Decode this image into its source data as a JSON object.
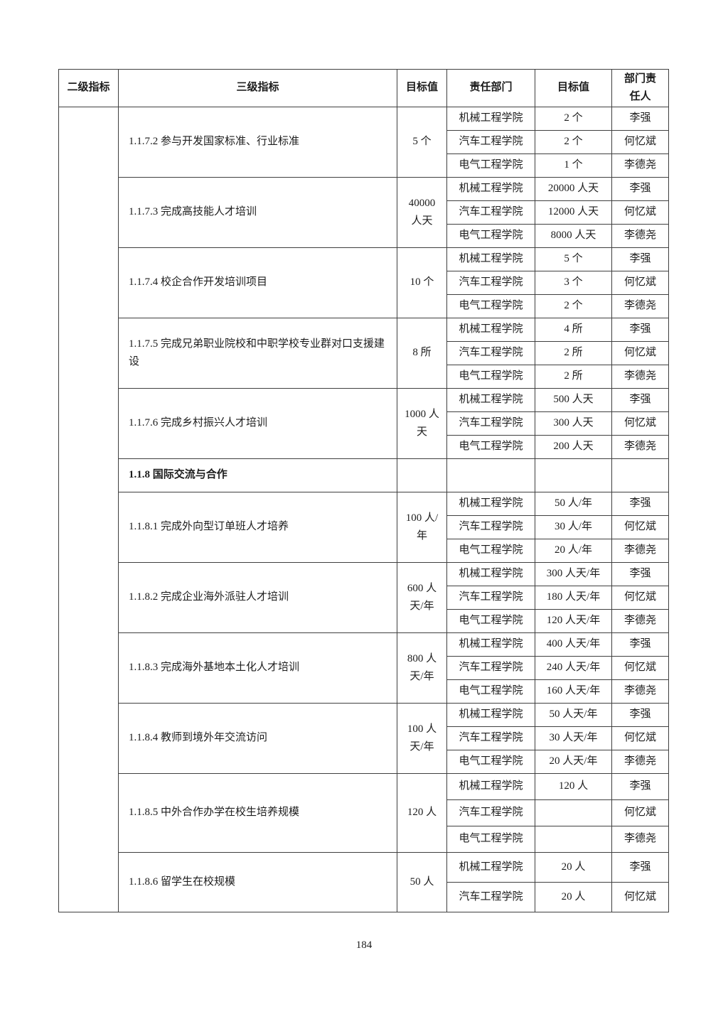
{
  "page": {
    "number": "184"
  },
  "table": {
    "headers": [
      "二级指标",
      "三级指标",
      "目标值",
      "责任部门",
      "目标值",
      "部门责任人"
    ],
    "groups": [
      {
        "indicator": "1.1.7.2 参与开发国家标准、行业标准",
        "target": "5 个",
        "rows": [
          {
            "dept": "机械工程学院",
            "value": "2 个",
            "person": "李强"
          },
          {
            "dept": "汽车工程学院",
            "value": "2 个",
            "person": "何忆斌"
          },
          {
            "dept": "电气工程学院",
            "value": "1 个",
            "person": "李德尧"
          }
        ]
      },
      {
        "indicator": "1.1.7.3 完成高技能人才培训",
        "target": "40000 人天",
        "rows": [
          {
            "dept": "机械工程学院",
            "value": "20000 人天",
            "person": "李强"
          },
          {
            "dept": "汽车工程学院",
            "value": "12000 人天",
            "person": "何忆斌"
          },
          {
            "dept": "电气工程学院",
            "value": "8000 人天",
            "person": "李德尧"
          }
        ]
      },
      {
        "indicator": "1.1.7.4 校企合作开发培训项目",
        "target": "10 个",
        "rows": [
          {
            "dept": "机械工程学院",
            "value": "5 个",
            "person": "李强"
          },
          {
            "dept": "汽车工程学院",
            "value": "3 个",
            "person": "何忆斌"
          },
          {
            "dept": "电气工程学院",
            "value": "2 个",
            "person": "李德尧"
          }
        ]
      },
      {
        "indicator": "1.1.7.5 完成兄弟职业院校和中职学校专业群对口支援建设",
        "target": "8 所",
        "rows": [
          {
            "dept": "机械工程学院",
            "value": "4 所",
            "person": "李强"
          },
          {
            "dept": "汽车工程学院",
            "value": "2 所",
            "person": "何忆斌"
          },
          {
            "dept": "电气工程学院",
            "value": "2 所",
            "person": "李德尧"
          }
        ]
      },
      {
        "indicator": "1.1.7.6 完成乡村振兴人才培训",
        "target": "1000 人天",
        "rows": [
          {
            "dept": "机械工程学院",
            "value": "500 人天",
            "person": "李强"
          },
          {
            "dept": "汽车工程学院",
            "value": "300 人天",
            "person": "何忆斌"
          },
          {
            "dept": "电气工程学院",
            "value": "200 人天",
            "person": "李德尧"
          }
        ]
      },
      {
        "section": true,
        "indicator": "1.1.8 国际交流与合作"
      },
      {
        "indicator": "1.1.8.1 完成外向型订单班人才培养",
        "target": "100 人/年",
        "rows": [
          {
            "dept": "机械工程学院",
            "value": "50 人/年",
            "person": "李强"
          },
          {
            "dept": "汽车工程学院",
            "value": "30 人/年",
            "person": "何忆斌"
          },
          {
            "dept": "电气工程学院",
            "value": "20 人/年",
            "person": "李德尧"
          }
        ]
      },
      {
        "indicator": "1.1.8.2 完成企业海外派驻人才培训",
        "target": "600 人天/年",
        "rows": [
          {
            "dept": "机械工程学院",
            "value": "300 人天/年",
            "person": "李强"
          },
          {
            "dept": "汽车工程学院",
            "value": "180 人天/年",
            "person": "何忆斌"
          },
          {
            "dept": "电气工程学院",
            "value": "120 人天/年",
            "person": "李德尧"
          }
        ]
      },
      {
        "indicator": "1.1.8.3 完成海外基地本土化人才培训",
        "target": "800 人天/年",
        "rows": [
          {
            "dept": "机械工程学院",
            "value": "400 人天/年",
            "person": "李强"
          },
          {
            "dept": "汽车工程学院",
            "value": "240 人天/年",
            "person": "何忆斌"
          },
          {
            "dept": "电气工程学院",
            "value": "160 人天/年",
            "person": "李德尧"
          }
        ]
      },
      {
        "indicator": "1.1.8.4 教师到境外年交流访问",
        "target": "100 人天/年",
        "rows": [
          {
            "dept": "机械工程学院",
            "value": "50 人天/年",
            "person": "李强"
          },
          {
            "dept": "汽车工程学院",
            "value": "30 人天/年",
            "person": "何忆斌"
          },
          {
            "dept": "电气工程学院",
            "value": "20 人天/年",
            "person": "李德尧"
          }
        ]
      },
      {
        "indicator": "1.1.8.5 中外合作办学在校生培养规模",
        "target": "120 人",
        "rows": [
          {
            "dept": "机械工程学院",
            "value": "120 人",
            "person": "李强"
          },
          {
            "dept": "汽车工程学院",
            "value": "",
            "person": "何忆斌"
          },
          {
            "dept": "电气工程学院",
            "value": "",
            "person": "李德尧"
          }
        ]
      },
      {
        "indicator": "1.1.8.6 留学生在校规模",
        "target": "50 人",
        "rows": [
          {
            "dept": "机械工程学院",
            "value": "20 人",
            "person": "李强"
          },
          {
            "dept": "汽车工程学院",
            "value": "20 人",
            "person": "何忆斌"
          }
        ]
      }
    ]
  }
}
